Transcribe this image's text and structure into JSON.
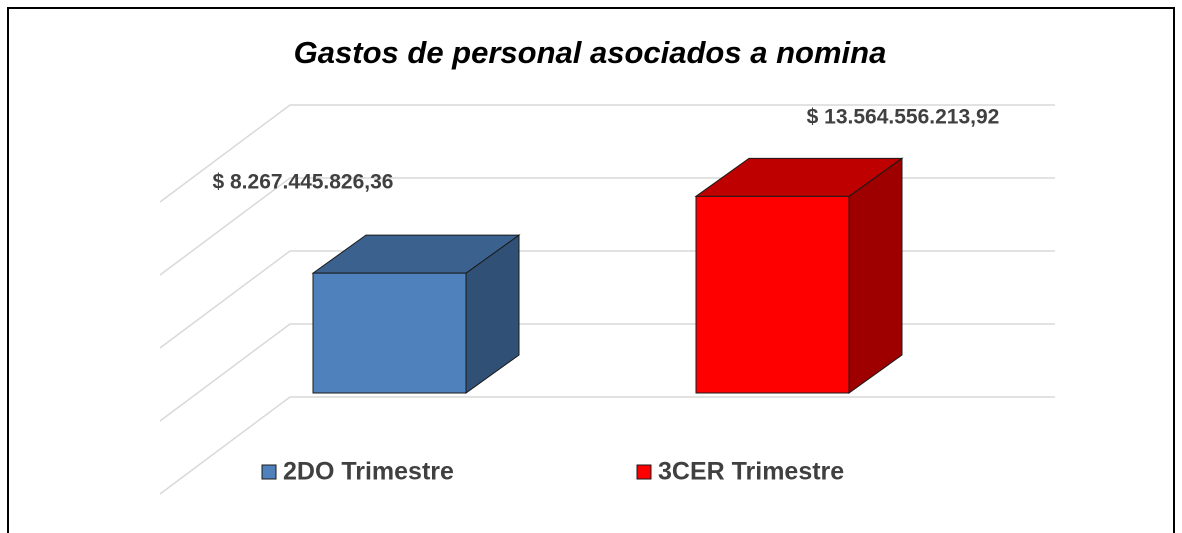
{
  "chart_data": {
    "type": "bar",
    "title": "Gastos de personal asociados a nomina",
    "categories": [
      null
    ],
    "series": [
      {
        "name": "2DO Trimestre",
        "color": "#4f81bd",
        "values": [
          8267445826.36
        ],
        "value_labels": [
          "$ 8.267.445.826,36"
        ]
      },
      {
        "name": "3CER Trimestre",
        "color": "#ff0000",
        "values": [
          13564556213.92
        ],
        "value_labels": [
          "$ 13.564.556.213,92"
        ]
      }
    ],
    "ylim": [
      0,
      16000000000
    ],
    "yticks": [
      0,
      4000000000,
      8000000000,
      12000000000,
      16000000000
    ],
    "grid": true,
    "legend": "bottom"
  }
}
